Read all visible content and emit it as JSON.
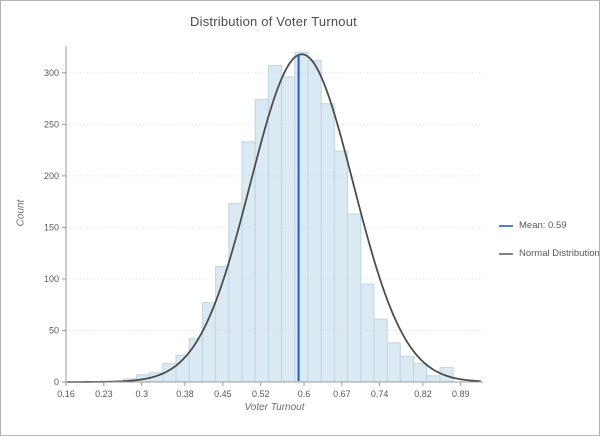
{
  "chart_data": {
    "type": "histogram",
    "title": "Distribution of Voter Turnout",
    "xlabel": "Voter Turnout",
    "ylabel": "Count",
    "x_ticks": [
      0.16,
      0.23,
      0.3,
      0.38,
      0.45,
      0.52,
      0.6,
      0.67,
      0.74,
      0.82,
      0.89
    ],
    "x_tick_labels": [
      "0.16",
      "0.23",
      "0.3",
      "0.38",
      "0.45",
      "0.52",
      "0.6",
      "0.67",
      "0.74",
      "0.82",
      "0.89"
    ],
    "y_ticks": [
      0,
      50,
      100,
      150,
      200,
      250,
      300
    ],
    "y_tick_labels": [
      "0",
      "50",
      "100",
      "150",
      "200",
      "250",
      "300"
    ],
    "xlim": [
      0.16,
      0.931
    ],
    "ylim": [
      0,
      326
    ],
    "grid": "horizontal-dotted",
    "legend_position": "right",
    "bins": {
      "first_center": 0.278,
      "width": 0.0244,
      "counts": [
        3,
        7,
        9,
        18,
        26,
        42,
        77,
        112,
        173,
        233,
        274,
        307,
        296,
        320,
        312,
        270,
        224,
        163,
        95,
        61,
        38,
        25,
        18,
        6,
        14
      ]
    },
    "normal_curve": {
      "mean": 0.596,
      "sigma": 0.095,
      "amplitude": 318,
      "label": "Normal Distribution"
    },
    "mean_line": {
      "value": 0.59,
      "label": "Mean: 0.59"
    },
    "colors": {
      "bar_fill": "#dbe9f3",
      "bar_stroke": "#bdd5e6",
      "curve": "#4d4d4d",
      "mean_line": "#1e5bd6",
      "legend_mean_swatch": "#4a80d9",
      "legend_normal_swatch": "#7f7f7f",
      "grid": "#d9d9d9",
      "axis": "#9b9b9b",
      "tick_text": "#595959"
    }
  }
}
